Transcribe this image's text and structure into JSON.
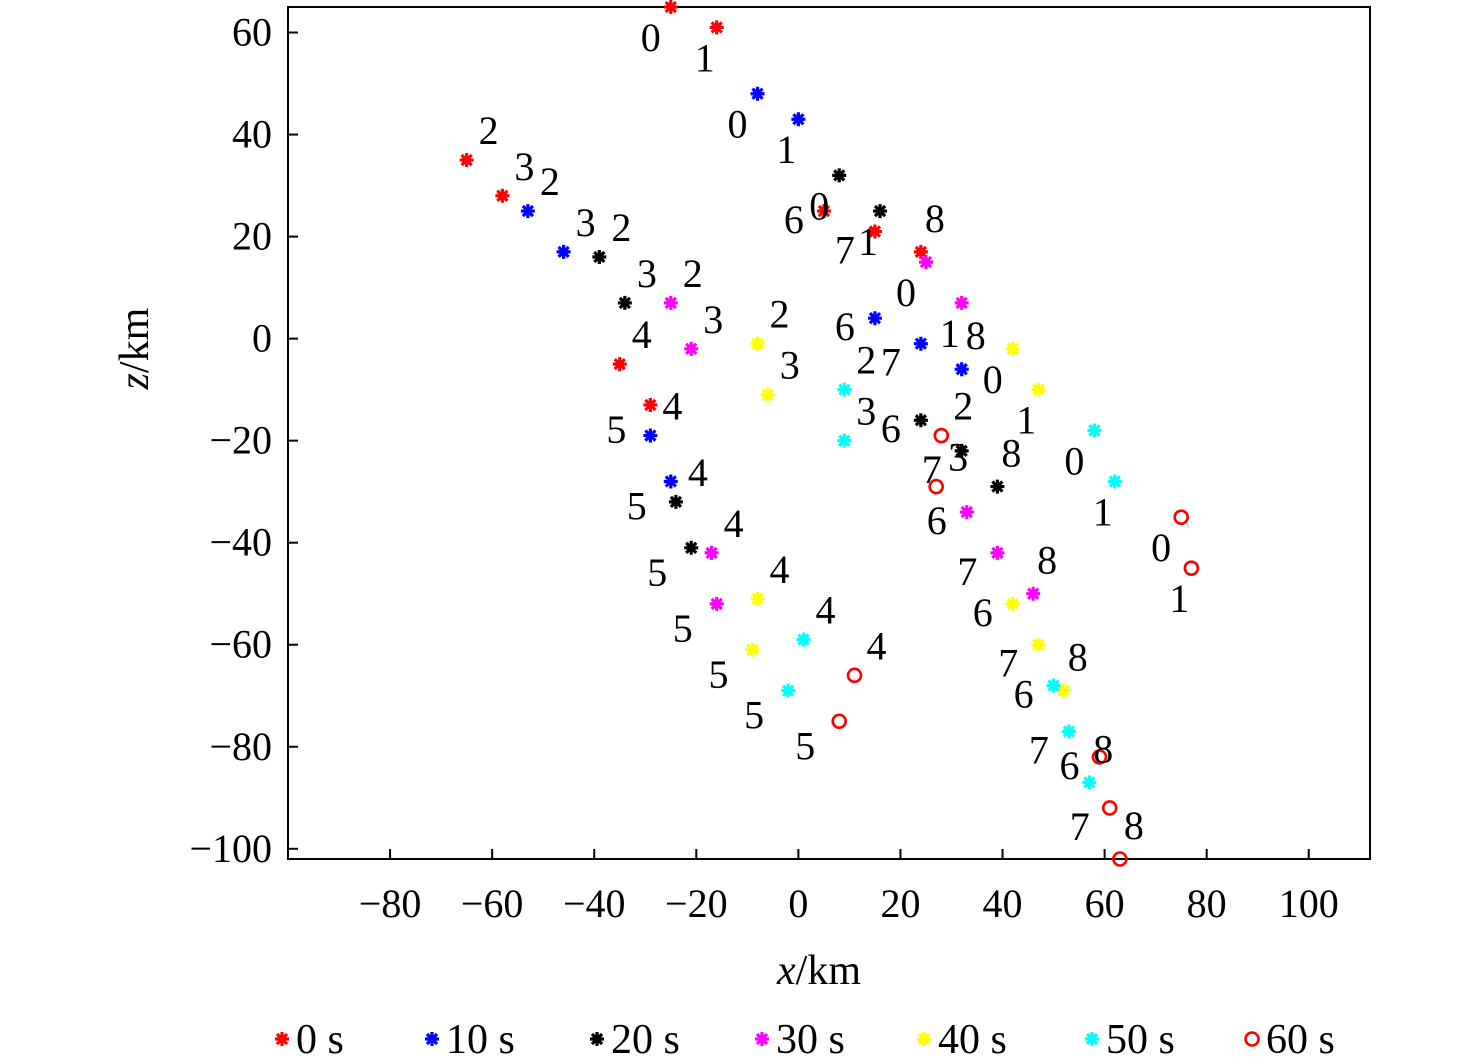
{
  "chart_data": {
    "type": "scatter",
    "xlabel": {
      "var": "x",
      "unit": "/km"
    },
    "ylabel": {
      "var": "z",
      "unit": "/km"
    },
    "xlim": [
      -100,
      112
    ],
    "ylim": [
      -102,
      65
    ],
    "xticks": [
      -80,
      -60,
      -40,
      -20,
      0,
      20,
      40,
      60,
      80,
      100
    ],
    "yticks": [
      60,
      40,
      20,
      0,
      -20,
      -40,
      -60,
      -80,
      -100
    ],
    "grid": false,
    "legend_position": "bottom",
    "series": [
      {
        "name": "0 s",
        "color": "#ff0000",
        "marker": "asterisk",
        "points": [
          {
            "label": "0",
            "x": -25,
            "z": 65
          },
          {
            "label": "1",
            "x": -16,
            "z": 61
          },
          {
            "label": "2",
            "x": -65,
            "z": 35
          },
          {
            "label": "3",
            "x": -58,
            "z": 28
          },
          {
            "label": "4",
            "x": -35,
            "z": -5
          },
          {
            "label": "5",
            "x": -29,
            "z": -13
          },
          {
            "label": "6",
            "x": 5,
            "z": 25
          },
          {
            "label": "7",
            "x": 15,
            "z": 21
          },
          {
            "label": "8",
            "x": 24,
            "z": 17
          }
        ]
      },
      {
        "name": "10 s",
        "color": "#0000ff",
        "marker": "asterisk",
        "points": [
          {
            "label": "0",
            "x": -8,
            "z": 48
          },
          {
            "label": "1",
            "x": 0,
            "z": 43
          },
          {
            "label": "2",
            "x": -53,
            "z": 25
          },
          {
            "label": "3",
            "x": -46,
            "z": 17
          },
          {
            "label": "4",
            "x": -29,
            "z": -19
          },
          {
            "label": "5",
            "x": -25,
            "z": -28
          },
          {
            "label": "6",
            "x": 15,
            "z": 4
          },
          {
            "label": "7",
            "x": 24,
            "z": -1
          },
          {
            "label": "8",
            "x": 32,
            "z": -6
          }
        ]
      },
      {
        "name": "20 s",
        "color": "#000000",
        "marker": "asterisk",
        "points": [
          {
            "label": "0",
            "x": 8,
            "z": 32
          },
          {
            "label": "1",
            "x": 16,
            "z": 25
          },
          {
            "label": "2",
            "x": -39,
            "z": 16
          },
          {
            "label": "3",
            "x": -34,
            "z": 7
          },
          {
            "label": "4",
            "x": -24,
            "z": -32
          },
          {
            "label": "5",
            "x": -21,
            "z": -41
          },
          {
            "label": "6",
            "x": 24,
            "z": -16
          },
          {
            "label": "7",
            "x": 32,
            "z": -22
          },
          {
            "label": "8",
            "x": 39,
            "z": -29
          }
        ]
      },
      {
        "name": "30 s",
        "color": "#ff00ff",
        "marker": "asterisk",
        "points": [
          {
            "label": "0",
            "x": 25,
            "z": 15
          },
          {
            "label": "1",
            "x": 32,
            "z": 7
          },
          {
            "label": "2",
            "x": -25,
            "z": 7
          },
          {
            "label": "3",
            "x": -21,
            "z": -2
          },
          {
            "label": "4",
            "x": -17,
            "z": -42
          },
          {
            "label": "5",
            "x": -16,
            "z": -52
          },
          {
            "label": "6",
            "x": 33,
            "z": -34
          },
          {
            "label": "7",
            "x": 39,
            "z": -42
          },
          {
            "label": "8",
            "x": 46,
            "z": -50
          }
        ]
      },
      {
        "name": "40 s",
        "color": "#ffff00",
        "marker": "asterisk",
        "points": [
          {
            "label": "0",
            "x": 42,
            "z": -2
          },
          {
            "label": "1",
            "x": 47,
            "z": -10
          },
          {
            "label": "2",
            "x": -8,
            "z": -1
          },
          {
            "label": "3",
            "x": -6,
            "z": -11
          },
          {
            "label": "4",
            "x": -8,
            "z": -51
          },
          {
            "label": "5",
            "x": -9,
            "z": -61
          },
          {
            "label": "6",
            "x": 42,
            "z": -52
          },
          {
            "label": "7",
            "x": 47,
            "z": -60
          },
          {
            "label": "8",
            "x": 52,
            "z": -69
          }
        ]
      },
      {
        "name": "50 s",
        "color": "#00ffff",
        "marker": "asterisk",
        "points": [
          {
            "label": "0",
            "x": 58,
            "z": -18
          },
          {
            "label": "1",
            "x": 62,
            "z": -28
          },
          {
            "label": "2",
            "x": 9,
            "z": -10
          },
          {
            "label": "3",
            "x": 9,
            "z": -20
          },
          {
            "label": "4",
            "x": 1,
            "z": -59
          },
          {
            "label": "5",
            "x": -2,
            "z": -69
          },
          {
            "label": "6",
            "x": 50,
            "z": -68
          },
          {
            "label": "7",
            "x": 53,
            "z": -77
          },
          {
            "label": "8",
            "x": 57,
            "z": -87
          }
        ]
      },
      {
        "name": "60 s",
        "color": "#ff0000",
        "marker": "circle",
        "points": [
          {
            "label": "0",
            "x": 75,
            "z": -35
          },
          {
            "label": "1",
            "x": 77,
            "z": -45
          },
          {
            "label": "2",
            "x": 28,
            "z": -19
          },
          {
            "label": "3",
            "x": 27,
            "z": -29
          },
          {
            "label": "4",
            "x": 11,
            "z": -66
          },
          {
            "label": "5",
            "x": 8,
            "z": -75
          },
          {
            "label": "6",
            "x": 59,
            "z": -82
          },
          {
            "label": "7",
            "x": 61,
            "z": -92
          },
          {
            "label": "8",
            "x": 63,
            "z": -102
          }
        ]
      }
    ]
  }
}
